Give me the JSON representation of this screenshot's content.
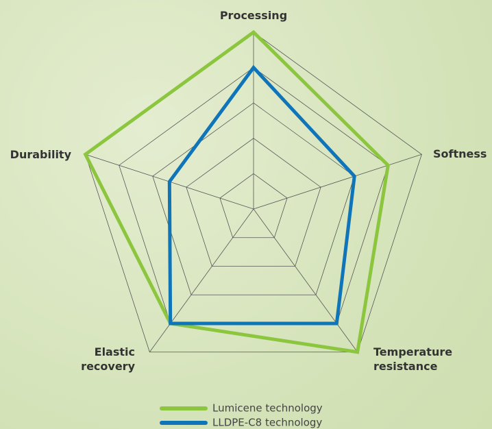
{
  "chart_data": {
    "type": "radar",
    "categories": [
      "Processing",
      "Softness",
      "Temperature resistance",
      "Elastic recovery",
      "Durability"
    ],
    "series": [
      {
        "name": "Lumicene technology",
        "color": "#8cc63f",
        "values": [
          5,
          4,
          5,
          4,
          5
        ]
      },
      {
        "name": "LLDPE-C8 technology",
        "color": "#0f75b8",
        "values": [
          4,
          3,
          4,
          4,
          2.5
        ]
      }
    ],
    "rlim": [
      0,
      5
    ],
    "rticks": [
      1,
      2,
      3,
      4,
      5
    ],
    "grid": true
  }
}
